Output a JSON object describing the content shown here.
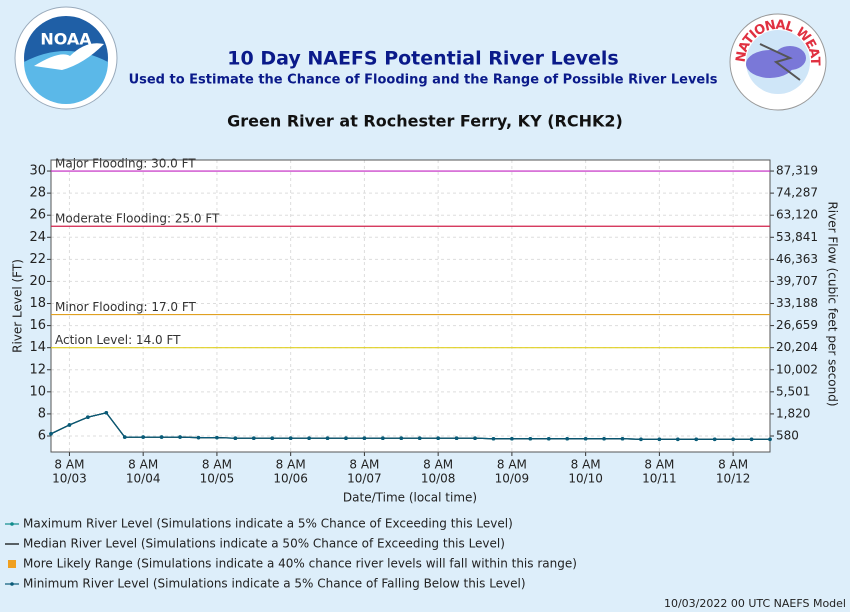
{
  "chart_data": {
    "type": "line",
    "title": "10 Day NAEFS Potential River Levels",
    "subtitle": "Used to Estimate the Chance of Flooding and the Range of Possible River Levels",
    "station": "Green River at Rochester Ferry, KY (RCHK2)",
    "ylabel": "River Level (FT)",
    "y2label": "River Flow (cubic feet per second)",
    "xlabel": "Date/Time (local time)",
    "footer": "10/03/2022 00 UTC NAEFS Model",
    "logos": {
      "noaa": "NOAA",
      "nws": "NATIONAL WEATHER SERVICE"
    },
    "grid": true,
    "xlim": [
      "10/03 02:00",
      "10/12 20:00"
    ],
    "xticks": [
      {
        "value": "10/03 08:00",
        "label": [
          "8 AM",
          "10/03"
        ]
      },
      {
        "value": "10/04 08:00",
        "label": [
          "8 AM",
          "10/04"
        ]
      },
      {
        "value": "10/05 08:00",
        "label": [
          "8 AM",
          "10/05"
        ]
      },
      {
        "value": "10/06 08:00",
        "label": [
          "8 AM",
          "10/06"
        ]
      },
      {
        "value": "10/07 08:00",
        "label": [
          "8 AM",
          "10/07"
        ]
      },
      {
        "value": "10/08 08:00",
        "label": [
          "8 AM",
          "10/08"
        ]
      },
      {
        "value": "10/09 08:00",
        "label": [
          "8 AM",
          "10/09"
        ]
      },
      {
        "value": "10/10 08:00",
        "label": [
          "8 AM",
          "10/10"
        ]
      },
      {
        "value": "10/11 08:00",
        "label": [
          "8 AM",
          "10/11"
        ]
      },
      {
        "value": "10/12 08:00",
        "label": [
          "8 AM",
          "10/12"
        ]
      }
    ],
    "ylim": [
      4.55,
      31
    ],
    "yticks": [
      6,
      8,
      10,
      12,
      14,
      16,
      18,
      20,
      22,
      24,
      26,
      28,
      30
    ],
    "y2ticks": [
      {
        "value": 580,
        "label": "580"
      },
      {
        "value": 1820,
        "label": "1,820"
      },
      {
        "value": 5501,
        "label": "5,501"
      },
      {
        "value": 10002,
        "label": "10,002"
      },
      {
        "value": 20204,
        "label": "20,204"
      },
      {
        "value": 26659,
        "label": "26,659"
      },
      {
        "value": 33188,
        "label": "33,188"
      },
      {
        "value": 39707,
        "label": "39,707"
      },
      {
        "value": 46363,
        "label": "46,363"
      },
      {
        "value": 53841,
        "label": "53,841"
      },
      {
        "value": 63120,
        "label": "63,120"
      },
      {
        "value": 74287,
        "label": "74,287"
      },
      {
        "value": 87319,
        "label": "87,319"
      }
    ],
    "thresholds": [
      {
        "label": "Major Flooding: 30.0 FT",
        "value": 30,
        "color": "#c020c0"
      },
      {
        "label": "Moderate Flooding: 25.0 FT",
        "value": 25,
        "color": "#d0204a"
      },
      {
        "label": "Minor Flooding: 17.0 FT",
        "value": 17,
        "color": "#e0a020"
      },
      {
        "label": "Action Level: 14.0 FT",
        "value": 14,
        "color": "#e0d020"
      }
    ],
    "x": [
      "10/03 02:00",
      "10/03 08:00",
      "10/03 14:00",
      "10/03 20:00",
      "10/04 02:00",
      "10/04 08:00",
      "10/04 14:00",
      "10/04 20:00",
      "10/05 02:00",
      "10/05 08:00",
      "10/05 14:00",
      "10/05 20:00",
      "10/06 02:00",
      "10/06 08:00",
      "10/06 14:00",
      "10/06 20:00",
      "10/07 02:00",
      "10/07 08:00",
      "10/07 14:00",
      "10/07 20:00",
      "10/08 02:00",
      "10/08 08:00",
      "10/08 14:00",
      "10/08 20:00",
      "10/09 02:00",
      "10/09 08:00",
      "10/09 14:00",
      "10/09 20:00",
      "10/10 02:00",
      "10/10 08:00",
      "10/10 14:00",
      "10/10 20:00",
      "10/11 02:00",
      "10/11 08:00",
      "10/11 14:00",
      "10/11 20:00",
      "10/12 02:00",
      "10/12 08:00",
      "10/12 14:00",
      "10/12 20:00"
    ],
    "series": [
      {
        "name": "Maximum River Level (Simulations indicate a 5% Chance of Exceeding this Level)",
        "color": "#108c8c",
        "marker": true,
        "values": [
          6.2,
          7.0,
          7.7,
          8.1,
          5.9,
          5.9,
          5.9,
          5.9,
          5.85,
          5.85,
          5.8,
          5.8,
          5.8,
          5.8,
          5.8,
          5.8,
          5.8,
          5.8,
          5.8,
          5.8,
          5.8,
          5.8,
          5.8,
          5.8,
          5.75,
          5.75,
          5.75,
          5.75,
          5.75,
          5.75,
          5.75,
          5.75,
          5.7,
          5.7,
          5.7,
          5.7,
          5.7,
          5.7,
          5.7,
          5.7
        ]
      },
      {
        "name": "Median River Level (Simulations indicate a 50% Chance of Exceeding this Level)",
        "color": "#000000",
        "marker": false,
        "values": [
          6.2,
          7.0,
          7.7,
          8.1,
          5.9,
          5.9,
          5.9,
          5.9,
          5.85,
          5.85,
          5.8,
          5.8,
          5.8,
          5.8,
          5.8,
          5.8,
          5.8,
          5.8,
          5.8,
          5.8,
          5.8,
          5.8,
          5.8,
          5.8,
          5.75,
          5.75,
          5.75,
          5.75,
          5.75,
          5.75,
          5.75,
          5.75,
          5.7,
          5.7,
          5.7,
          5.7,
          5.7,
          5.7,
          5.7,
          5.7
        ]
      },
      {
        "name": "More Likely Range (Simulations indicate a 40% chance river levels will fall within this range)",
        "color": "#f0a020",
        "legend_marker": "square"
      },
      {
        "name": "Minimum River Level (Simulations indicate a 5% Chance of Falling Below this Level)",
        "color": "#0a5a78",
        "marker": true,
        "values": [
          6.2,
          7.0,
          7.7,
          8.1,
          5.9,
          5.9,
          5.9,
          5.9,
          5.85,
          5.85,
          5.8,
          5.8,
          5.8,
          5.8,
          5.8,
          5.8,
          5.8,
          5.8,
          5.8,
          5.8,
          5.8,
          5.8,
          5.8,
          5.8,
          5.75,
          5.75,
          5.75,
          5.75,
          5.75,
          5.75,
          5.75,
          5.75,
          5.7,
          5.7,
          5.7,
          5.7,
          5.7,
          5.7,
          5.7,
          5.7
        ]
      }
    ]
  }
}
